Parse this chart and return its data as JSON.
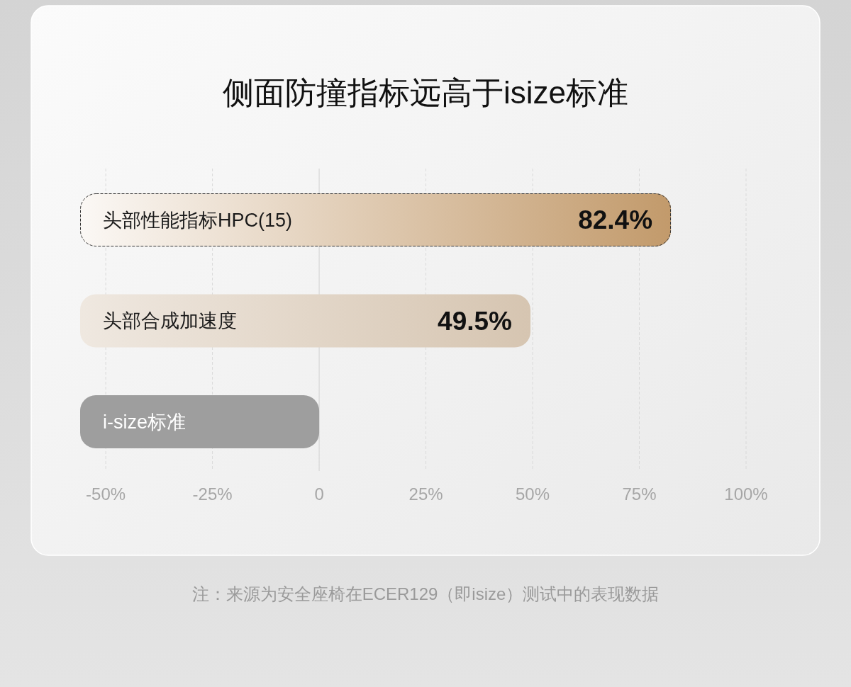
{
  "chart_data": {
    "type": "bar",
    "orientation": "horizontal",
    "title": "侧面防撞指标远高于isize标准",
    "categories": [
      "头部性能指标HPC(15)",
      "头部合成加速度",
      "i-size标准"
    ],
    "base": [
      -56,
      -56,
      -56
    ],
    "values": [
      138.4,
      105.5,
      56
    ],
    "value_labels": [
      "82.4%",
      "49.5%",
      null
    ],
    "colors": [
      "#c29a6b",
      "#d6c5b1",
      "#9e9e9e"
    ],
    "xlim": [
      -56,
      100
    ],
    "xticks": [
      {
        "value": -50,
        "label": "-50%"
      },
      {
        "value": -25,
        "label": "-25%"
      },
      0,
      {
        "value": 25,
        "label": "25%"
      },
      {
        "value": 50,
        "label": "50%"
      },
      {
        "value": 75,
        "label": "75%"
      },
      {
        "value": 100,
        "label": "100%"
      }
    ],
    "grid": "x",
    "annotations": [
      "注：来源为安全座椅在ECER129（即isize）测试中的表现数据"
    ]
  }
}
